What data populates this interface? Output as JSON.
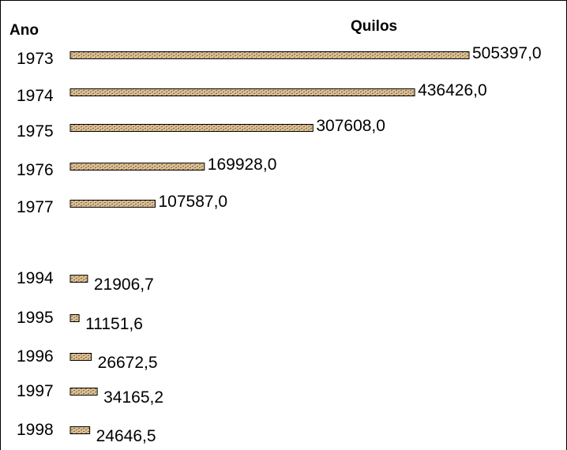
{
  "chart_data": {
    "type": "bar",
    "orientation": "horizontal",
    "category_header": "Ano",
    "value_header": "Quilos",
    "categories": [
      "1973",
      "1974",
      "1975",
      "1976",
      "1977",
      "1994",
      "1995",
      "1996",
      "1997",
      "1998"
    ],
    "values": [
      505397.0,
      436426.0,
      307608.0,
      169928.0,
      107587.0,
      21906.7,
      11151.6,
      26672.5,
      34165.2,
      24646.5
    ],
    "value_labels": [
      "505397,0",
      "436426,0",
      "307608,0",
      "169928,0",
      "107587,0",
      "21906,7",
      "11151,6",
      "26672,5",
      "34165,2",
      "24646,5"
    ],
    "bar_color": "#c8a878",
    "bar_border_color": "#000000",
    "grid": false,
    "legend": "none"
  }
}
